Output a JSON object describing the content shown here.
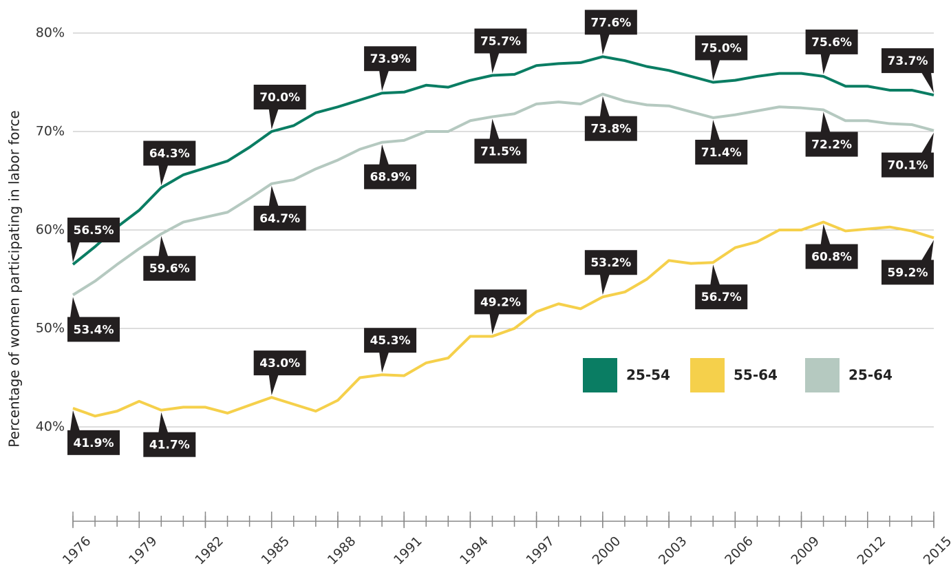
{
  "chart_data": {
    "type": "line",
    "ylabel": "Percentage of women participating in labor force",
    "x": [
      1976,
      1977,
      1978,
      1979,
      1980,
      1981,
      1982,
      1983,
      1984,
      1985,
      1986,
      1987,
      1988,
      1989,
      1990,
      1991,
      1992,
      1993,
      1994,
      1995,
      1996,
      1997,
      1998,
      1999,
      2000,
      2001,
      2002,
      2003,
      2004,
      2005,
      2006,
      2007,
      2008,
      2009,
      2010,
      2011,
      2012,
      2013,
      2014,
      2015
    ],
    "xlim": [
      1976,
      2015
    ],
    "xticks": [
      1976,
      1979,
      1982,
      1985,
      1988,
      1991,
      1994,
      1997,
      2000,
      2003,
      2006,
      2009,
      2012,
      2015
    ],
    "ylim": [
      30,
      80
    ],
    "yticks": [
      {
        "value": 40,
        "label": "40%"
      },
      {
        "value": 50,
        "label": "50%"
      },
      {
        "value": 60,
        "label": "60%"
      },
      {
        "value": 70,
        "label": "70%"
      },
      {
        "value": 80,
        "label": "80%"
      }
    ],
    "grid": true,
    "legend": "right",
    "series": [
      {
        "name": "25-54",
        "color": "#0a7d63",
        "values": [
          56.5,
          58.3,
          60.3,
          62.0,
          64.3,
          65.6,
          66.3,
          67.0,
          68.4,
          70.0,
          70.6,
          71.9,
          72.5,
          73.2,
          73.9,
          74.0,
          74.7,
          74.5,
          75.2,
          75.7,
          75.8,
          76.7,
          76.9,
          77.0,
          77.6,
          77.2,
          76.6,
          76.2,
          75.6,
          75.0,
          75.2,
          75.6,
          75.9,
          75.9,
          75.6,
          74.6,
          74.6,
          74.2,
          74.2,
          73.7
        ],
        "value_labels": [
          "56.5%",
          null,
          null,
          null,
          "64.3%",
          null,
          null,
          null,
          null,
          "70.0%",
          null,
          null,
          null,
          null,
          "73.9%",
          null,
          null,
          null,
          null,
          "75.7%",
          null,
          null,
          null,
          null,
          "77.6%",
          null,
          null,
          null,
          null,
          "75.0%",
          null,
          null,
          null,
          null,
          "75.6%",
          null,
          null,
          null,
          null,
          "73.7%"
        ]
      },
      {
        "name": "55-64",
        "color": "#f5d04b",
        "values": [
          41.9,
          41.1,
          41.6,
          42.6,
          41.7,
          42.0,
          42.0,
          41.4,
          42.2,
          43.0,
          42.3,
          41.6,
          42.7,
          45.0,
          45.3,
          45.2,
          46.5,
          47.0,
          49.2,
          49.2,
          50.0,
          51.7,
          52.5,
          52.0,
          53.2,
          53.7,
          55.0,
          56.9,
          56.6,
          56.7,
          58.2,
          58.8,
          60.0,
          60.0,
          60.8,
          59.9,
          60.1,
          60.3,
          59.9,
          59.2
        ],
        "value_labels": [
          "41.9%",
          null,
          null,
          null,
          "41.7%",
          null,
          null,
          null,
          null,
          "43.0%",
          null,
          null,
          null,
          null,
          "45.3%",
          null,
          null,
          null,
          null,
          "49.2%",
          null,
          null,
          null,
          null,
          "53.2%",
          null,
          null,
          null,
          null,
          "56.7%",
          null,
          null,
          null,
          null,
          "60.8%",
          null,
          null,
          null,
          null,
          "59.2%"
        ]
      },
      {
        "name": "25-64",
        "color": "#b5c9c0",
        "values": [
          53.4,
          54.8,
          56.5,
          58.1,
          59.6,
          60.8,
          61.3,
          61.8,
          63.2,
          64.7,
          65.1,
          66.2,
          67.1,
          68.2,
          68.9,
          69.1,
          70.0,
          70.0,
          71.1,
          71.5,
          71.8,
          72.8,
          73.0,
          72.8,
          73.8,
          73.1,
          72.7,
          72.6,
          72.0,
          71.4,
          71.7,
          72.1,
          72.5,
          72.4,
          72.2,
          71.1,
          71.1,
          70.8,
          70.7,
          70.1
        ],
        "value_labels": [
          "53.4%",
          null,
          null,
          null,
          "59.6%",
          null,
          null,
          null,
          null,
          "64.7%",
          null,
          null,
          null,
          null,
          "68.9%",
          null,
          null,
          null,
          null,
          "71.5%",
          null,
          null,
          null,
          null,
          "73.8%",
          null,
          null,
          null,
          null,
          "71.4%",
          null,
          null,
          null,
          null,
          "72.2%",
          null,
          null,
          null,
          null,
          "70.1%"
        ]
      }
    ]
  }
}
